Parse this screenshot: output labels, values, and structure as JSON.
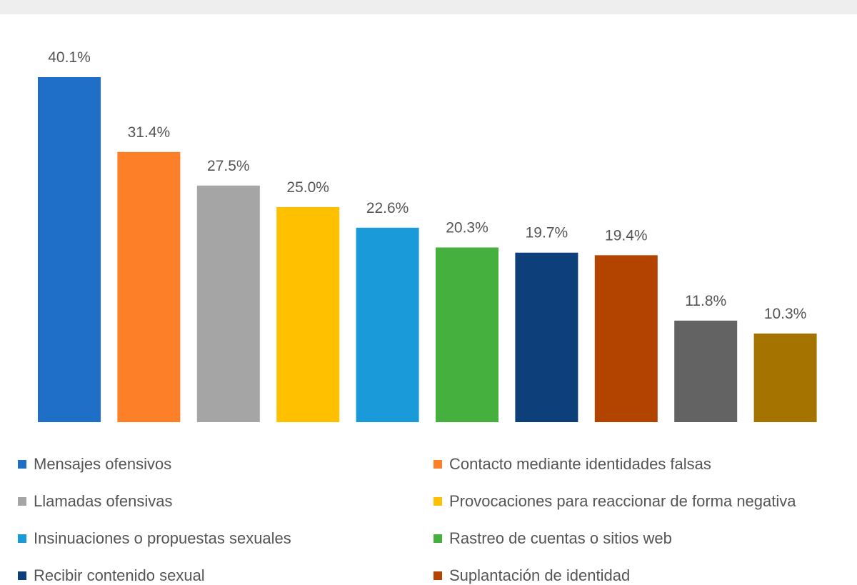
{
  "chart_data": {
    "type": "bar",
    "categories": [
      "Mensajes ofensivos",
      "Contacto mediante identidades falsas",
      "Llamadas ofensivas",
      "Provocaciones para reaccionar de forma negativa",
      "Insinuaciones o propuestas sexuales",
      "Rastreo de cuentas o sitios web",
      "Recibir contenido sexual",
      "Suplantación de identidad",
      "",
      ""
    ],
    "values": [
      40.1,
      31.4,
      27.5,
      25.0,
      22.6,
      20.3,
      19.7,
      19.4,
      11.8,
      10.3
    ],
    "data_labels": [
      "40.1%",
      "31.4%",
      "27.5%",
      "25.0%",
      "22.6%",
      "20.3%",
      "19.7%",
      "19.4%",
      "11.8%",
      "10.3%"
    ],
    "colors": [
      "#1f6fc9",
      "#fd7f28",
      "#a5a5a5",
      "#ffc000",
      "#1a9ad8",
      "#46b03f",
      "#0d3f7a",
      "#b34400",
      "#636363",
      "#a57400"
    ],
    "title": "",
    "xlabel": "",
    "ylabel": "",
    "ylim": [
      0,
      40.1
    ],
    "grid": false,
    "legend_position": "bottom",
    "legend": [
      "Mensajes ofensivos",
      "Contacto mediante identidades falsas",
      "Llamadas ofensivas",
      "Provocaciones para reaccionar de forma negativa",
      "Insinuaciones o propuestas sexuales",
      "Rastreo de cuentas o sitios web",
      "Recibir contenido sexual",
      "Suplantación de identidad"
    ]
  }
}
